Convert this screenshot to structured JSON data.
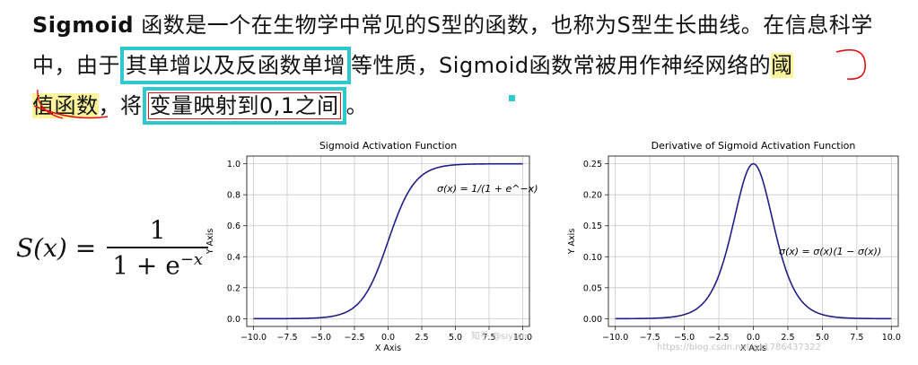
{
  "paragraph": {
    "lead_bold": "Sigmoid",
    "part1": " 函数是一个在生物学中常见的S型的函数，也称为S型生长曲线。在信息科学中，由于",
    "boxed1": "其单增以及反函数单增",
    "part2": "等性质，",
    "bold2": "Sigmoid",
    "part3": "函数常被用作神经网络的",
    "hl1": "阈",
    "hl2": "值函数",
    "part4": "，将",
    "boxed2": "变量映射到0,1之间",
    "end": "。"
  },
  "formula": {
    "lhs": "S(x) =",
    "numerator": "1",
    "den_base": "1 + e",
    "den_exp": "−x"
  },
  "colors": {
    "highlight": "#fbf49a",
    "box_border": "#2ec8cf",
    "pen_red": "#d11",
    "curve": "#1f1f8a"
  },
  "chart_data": [
    {
      "type": "line",
      "title": "Sigmoid Activation Function",
      "xlabel": "X Axis",
      "ylabel": "Y Axis",
      "xlim": [
        -10.5,
        10.5
      ],
      "ylim": [
        -0.05,
        1.05
      ],
      "xticks": [
        "−10.0",
        "−7.5",
        "−5.0",
        "−2.5",
        "0.0",
        "2.5",
        "5.0",
        "7.5",
        "10.0"
      ],
      "yticks": [
        "0.0",
        "0.2",
        "0.4",
        "0.6",
        "0.8",
        "1.0"
      ],
      "grid": true,
      "function": "sigmoid",
      "x_range": [
        -10,
        10
      ],
      "annotation": "σ(x) = 1/(1 + e^−x)",
      "watermark": "知乎 @siyuan"
    },
    {
      "type": "line",
      "title": "Derivative of Sigmoid Activation Function",
      "xlabel": "X Axis",
      "ylabel": "Y Axis",
      "xlim": [
        -10.5,
        10.5
      ],
      "ylim": [
        -0.0125,
        0.2625
      ],
      "xticks": [
        "−10.0",
        "−7.5",
        "−5.0",
        "−2.5",
        "0.0",
        "2.5",
        "5.0",
        "7.5",
        "10.0"
      ],
      "yticks": [
        "0.00",
        "0.05",
        "0.10",
        "0.15",
        "0.20",
        "0.25"
      ],
      "grid": true,
      "function": "sigmoid_derivative",
      "x_range": [
        -10,
        10
      ],
      "annotation": "σ(x) = σ(x)(1 − σ(x))",
      "watermark": "https://blog.csdn.net/gx1786437322"
    }
  ]
}
